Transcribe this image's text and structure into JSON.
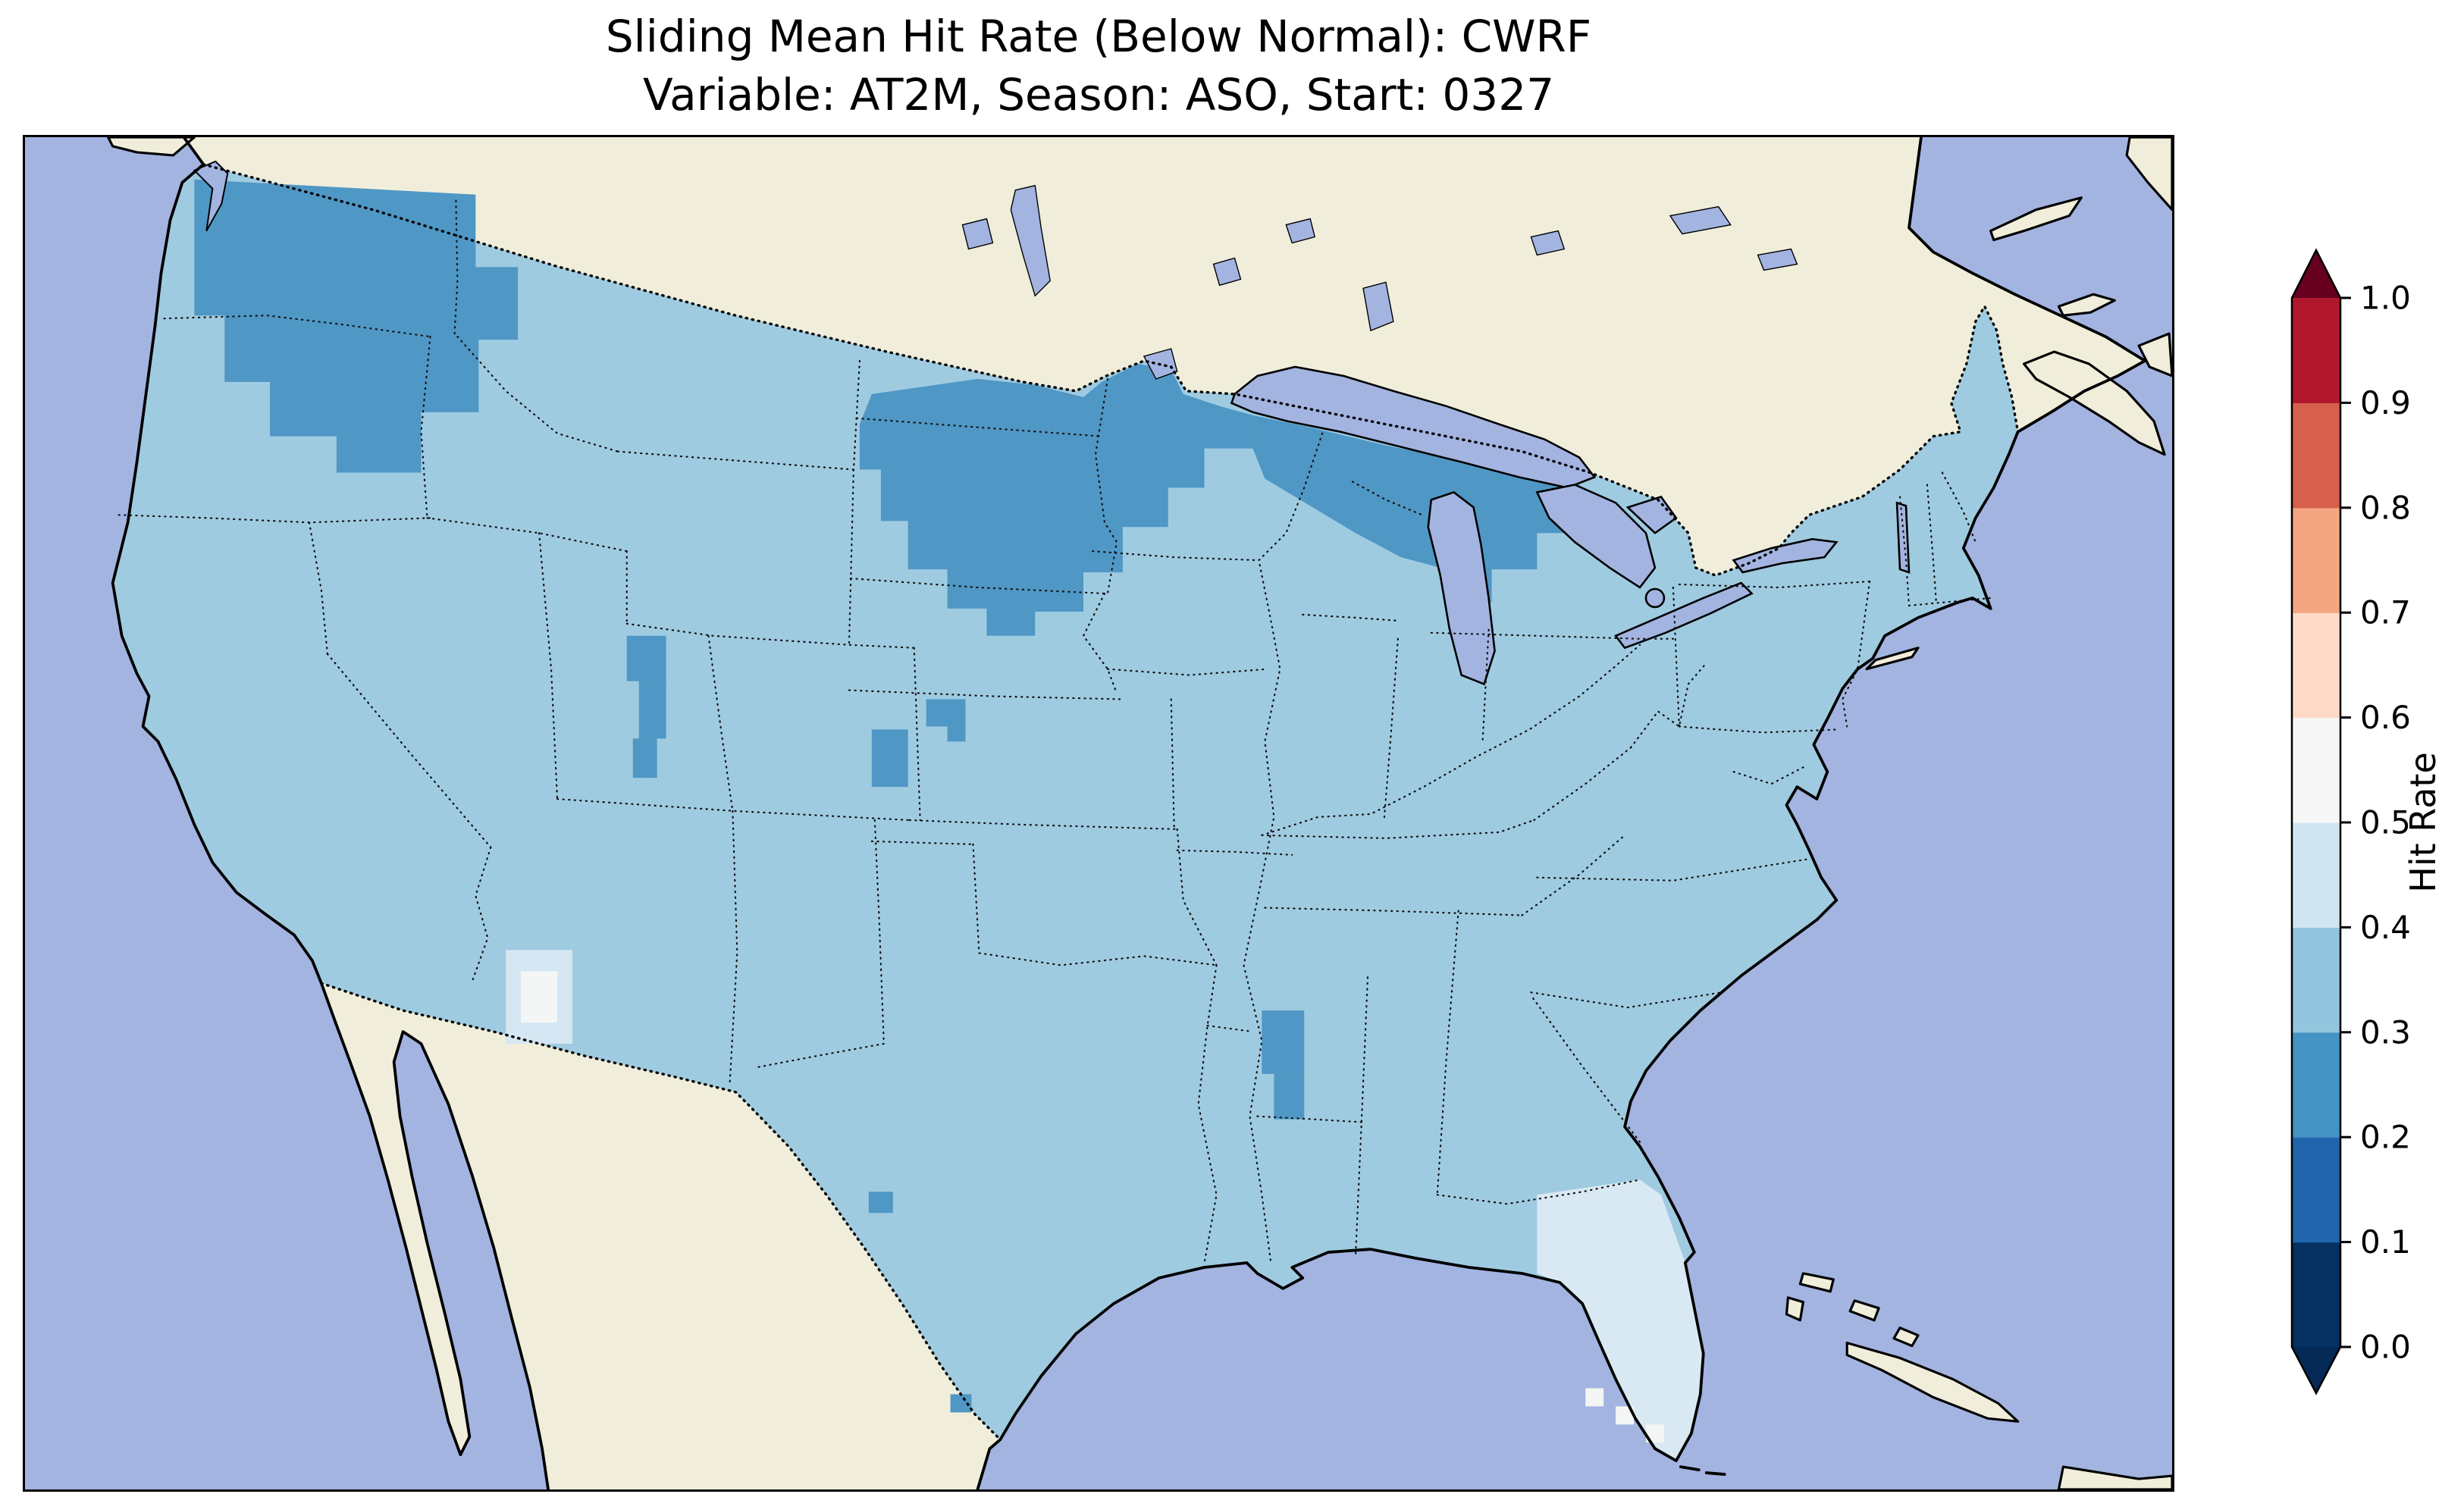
{
  "figure": {
    "title_line1": "Sliding Mean Hit Rate (Below Normal): CWRF",
    "title_line2": "Variable: AT2M, Season: ASO, Start: 0327"
  },
  "chart_data": {
    "type": "heatmap",
    "subtype": "geographic-hit-rate-map",
    "title": "Sliding Mean Hit Rate (Below Normal): CWRF",
    "subtitle": "Variable: AT2M, Season: ASO, Start: 0327",
    "model": "CWRF",
    "variable": "AT2M",
    "season": "ASO",
    "start": "0327",
    "metric": "Sliding Mean Hit Rate (Below Normal)",
    "map_extent": "Continental United States with southern Canada, northern Mexico, Gulf of Mexico and western Atlantic",
    "colorbar": {
      "label": "Hit Rate",
      "range": [
        0.0,
        1.0
      ],
      "extend": "both",
      "ticks": [
        "1.0",
        "0.9",
        "0.8",
        "0.7",
        "0.6",
        "0.5",
        "0.4",
        "0.3",
        "0.2",
        "0.1",
        "0.0"
      ],
      "bins_top_to_bottom": [
        {
          "range": [
            0.9,
            1.0
          ],
          "color": "#b2182b"
        },
        {
          "range": [
            0.8,
            0.9
          ],
          "color": "#d6604d"
        },
        {
          "range": [
            0.7,
            0.8
          ],
          "color": "#f4a582"
        },
        {
          "range": [
            0.6,
            0.7
          ],
          "color": "#fddbc7"
        },
        {
          "range": [
            0.5,
            0.6
          ],
          "color": "#f7f7f7"
        },
        {
          "range": [
            0.4,
            0.5
          ],
          "color": "#d1e5f0"
        },
        {
          "range": [
            0.3,
            0.4
          ],
          "color": "#92c5de"
        },
        {
          "range": [
            0.2,
            0.3
          ],
          "color": "#4393c3"
        },
        {
          "range": [
            0.1,
            0.2
          ],
          "color": "#2166ac"
        },
        {
          "range": [
            0.0,
            0.1
          ],
          "color": "#053061"
        }
      ],
      "over_color": "#67001f",
      "under_color": "#042a55"
    },
    "regions": [
      {
        "name": "Most of CONUS",
        "hit_rate_bin": [
          0.3,
          0.4
        ]
      },
      {
        "name": "Pacific Northwest (Washington, N Idaho panhandle)",
        "hit_rate_bin": [
          0.2,
          0.3
        ]
      },
      {
        "name": "Eastern North Dakota / northern Minnesota / NE South Dakota",
        "hit_rate_bin": [
          0.2,
          0.3
        ]
      },
      {
        "name": "Upper Great Lakes: N Wisconsin, Michigan UP, N lower Michigan",
        "hit_rate_bin": [
          0.2,
          0.3
        ]
      },
      {
        "name": "Central Utah (small patch)",
        "hit_rate_bin": [
          0.2,
          0.3
        ]
      },
      {
        "name": "Central Nebraska / NE Colorado border (small patches)",
        "hit_rate_bin": [
          0.2,
          0.3
        ]
      },
      {
        "name": "West-central Mississippi (small patch)",
        "hit_rate_bin": [
          0.2,
          0.3
        ]
      },
      {
        "name": "Central and south Texas (tiny patches)",
        "hit_rate_bin": [
          0.2,
          0.3
        ]
      },
      {
        "name": "Southwestern Arizona spot",
        "hit_rate_bin": [
          0.5,
          0.6
        ]
      },
      {
        "name": "Florida peninsula",
        "hit_rate_bin": [
          0.4,
          0.5
        ]
      }
    ],
    "colors": {
      "ocean": "#a3b4e1",
      "non_us_land": "#f0eedb",
      "us_base_fill": "#9fcbe1",
      "dark_patch": "#4f97c5",
      "pale_patch": "#d5e7f2",
      "white_patch": "#f3f6f5",
      "florida_fill": "#d9e9f3",
      "coastline": "#000000",
      "state_border": "#111111"
    }
  }
}
